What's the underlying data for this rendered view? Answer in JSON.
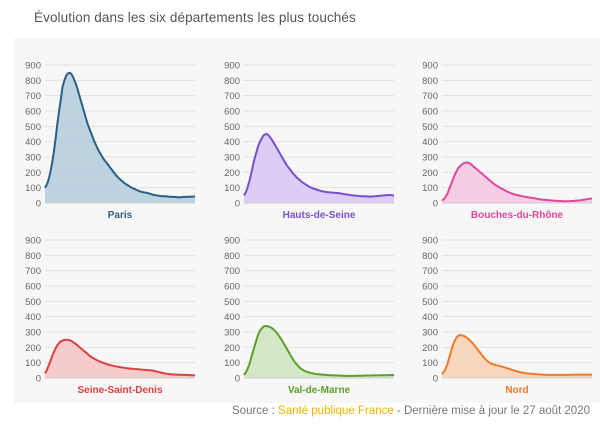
{
  "header": {
    "title": "Évolution dans les six départements les plus touchés"
  },
  "footer": {
    "source_label": "Source : ",
    "source_link": "Santé publique France",
    "source_suffix": " - Dernière mise à jour le 27 août 2020"
  },
  "chart_data": [
    {
      "type": "area",
      "title": "Paris",
      "color": "#2c5f85",
      "fill": "#b3cddc",
      "ylim": [
        0,
        900
      ],
      "yticks": [
        0,
        100,
        200,
        300,
        400,
        500,
        600,
        700,
        800,
        900
      ],
      "grid": true,
      "values": [
        100,
        120,
        150,
        200,
        260,
        330,
        420,
        520,
        600,
        680,
        760,
        800,
        830,
        845,
        850,
        840,
        820,
        790,
        760,
        720,
        680,
        640,
        600,
        560,
        520,
        490,
        460,
        430,
        400,
        375,
        350,
        330,
        310,
        290,
        275,
        260,
        245,
        230,
        215,
        200,
        185,
        170,
        160,
        150,
        140,
        130,
        122,
        115,
        108,
        100,
        95,
        90,
        85,
        80,
        75,
        72,
        70,
        68,
        65,
        62,
        58,
        55,
        52,
        50,
        48,
        46,
        45,
        44,
        44,
        43,
        42,
        41,
        40,
        40,
        39,
        38,
        38,
        38,
        39,
        40,
        40,
        41,
        41,
        42,
        42,
        43
      ]
    },
    {
      "type": "area",
      "title": "Hauts-de-Seine",
      "color": "#7a4fc9",
      "fill": "#d6c6f2",
      "ylim": [
        0,
        900
      ],
      "yticks": [
        0,
        100,
        200,
        300,
        400,
        500,
        600,
        700,
        800,
        900
      ],
      "grid": true,
      "values": [
        50,
        70,
        100,
        140,
        190,
        240,
        290,
        330,
        370,
        400,
        420,
        440,
        448,
        450,
        440,
        425,
        410,
        390,
        370,
        350,
        330,
        310,
        290,
        270,
        250,
        235,
        220,
        205,
        190,
        178,
        165,
        155,
        145,
        135,
        128,
        120,
        113,
        106,
        100,
        96,
        92,
        88,
        84,
        80,
        77,
        75,
        73,
        71,
        70,
        69,
        68,
        67,
        66,
        65,
        64,
        62,
        60,
        58,
        56,
        54,
        52,
        50,
        49,
        48,
        47,
        46,
        45,
        44,
        44,
        43,
        43,
        42,
        42,
        43,
        44,
        45,
        46,
        47,
        48,
        49,
        50,
        51,
        52,
        52,
        50,
        48
      ]
    },
    {
      "type": "area",
      "title": "Bouches-du-Rhône",
      "color": "#e0479e",
      "fill": "#f5c6e0",
      "ylim": [
        0,
        900
      ],
      "yticks": [
        0,
        100,
        200,
        300,
        400,
        500,
        600,
        700,
        800,
        900
      ],
      "grid": true,
      "values": [
        15,
        25,
        40,
        60,
        90,
        120,
        150,
        180,
        205,
        225,
        240,
        250,
        258,
        262,
        265,
        262,
        255,
        245,
        235,
        225,
        215,
        205,
        195,
        185,
        175,
        165,
        155,
        145,
        135,
        125,
        117,
        110,
        103,
        96,
        90,
        84,
        78,
        72,
        67,
        62,
        58,
        55,
        52,
        49,
        46,
        44,
        42,
        40,
        38,
        36,
        34,
        32,
        30,
        28,
        26,
        24,
        22,
        21,
        20,
        19,
        18,
        17,
        16,
        15,
        14,
        14,
        13,
        13,
        12,
        12,
        12,
        12,
        13,
        13,
        14,
        15,
        16,
        17,
        18,
        20,
        22,
        24,
        26,
        28,
        30
      ]
    },
    {
      "type": "area",
      "title": "Seine-Saint-Denis",
      "color": "#dc4040",
      "fill": "#f5c3c3",
      "ylim": [
        0,
        900
      ],
      "yticks": [
        0,
        100,
        200,
        300,
        400,
        500,
        600,
        700,
        800,
        900
      ],
      "grid": true,
      "values": [
        30,
        50,
        80,
        110,
        140,
        170,
        195,
        215,
        230,
        240,
        245,
        248,
        250,
        248,
        245,
        240,
        232,
        224,
        215,
        205,
        195,
        185,
        175,
        165,
        155,
        145,
        137,
        130,
        123,
        117,
        111,
        106,
        101,
        97,
        93,
        89,
        86,
        83,
        80,
        77,
        75,
        73,
        71,
        69,
        67,
        65,
        63,
        62,
        61,
        60,
        59,
        58,
        57,
        56,
        55,
        54,
        53,
        52,
        51,
        50,
        48,
        46,
        44,
        41,
        38,
        35,
        32,
        30,
        28,
        26,
        25,
        24,
        23,
        22,
        22,
        21,
        21,
        20,
        20,
        20,
        19,
        19,
        18,
        18,
        18
      ]
    },
    {
      "type": "area",
      "title": "Val-de-Marne",
      "color": "#5e9e2a",
      "fill": "#cfe4bd",
      "ylim": [
        0,
        900
      ],
      "yticks": [
        0,
        100,
        200,
        300,
        400,
        500,
        600,
        700,
        800,
        900
      ],
      "grid": true,
      "values": [
        20,
        35,
        60,
        90,
        130,
        170,
        210,
        250,
        285,
        310,
        325,
        335,
        340,
        338,
        335,
        330,
        322,
        312,
        300,
        285,
        268,
        250,
        230,
        210,
        190,
        170,
        150,
        130,
        112,
        96,
        82,
        70,
        60,
        52,
        46,
        41,
        37,
        34,
        31,
        29,
        27,
        25,
        24,
        23,
        22,
        21,
        20,
        19,
        18,
        18,
        17,
        17,
        16,
        16,
        15,
        15,
        15,
        14,
        14,
        14,
        14,
        14,
        14,
        15,
        15,
        15,
        15,
        15,
        16,
        16,
        16,
        16,
        17,
        17,
        17,
        17,
        17,
        18,
        18,
        18,
        18,
        19,
        19,
        19,
        20
      ]
    },
    {
      "type": "area",
      "title": "Nord",
      "color": "#ee7a2a",
      "fill": "#f9d1b4",
      "ylim": [
        0,
        900
      ],
      "yticks": [
        0,
        100,
        200,
        300,
        400,
        500,
        600,
        700,
        800,
        900
      ],
      "grid": true,
      "values": [
        25,
        40,
        60,
        90,
        130,
        170,
        210,
        240,
        262,
        275,
        280,
        278,
        275,
        270,
        262,
        252,
        240,
        228,
        215,
        200,
        185,
        170,
        155,
        140,
        127,
        115,
        105,
        97,
        92,
        88,
        85,
        82,
        79,
        76,
        73,
        70,
        66,
        62,
        58,
        54,
        50,
        46,
        43,
        40,
        37,
        35,
        33,
        31,
        30,
        29,
        28,
        27,
        26,
        25,
        24,
        23,
        22,
        21,
        21,
        20,
        20,
        20,
        20,
        20,
        20,
        20,
        20,
        20,
        20,
        20,
        20,
        20,
        21,
        21,
        21,
        22,
        22,
        22,
        22,
        22,
        22,
        22,
        22,
        22,
        22
      ]
    }
  ]
}
